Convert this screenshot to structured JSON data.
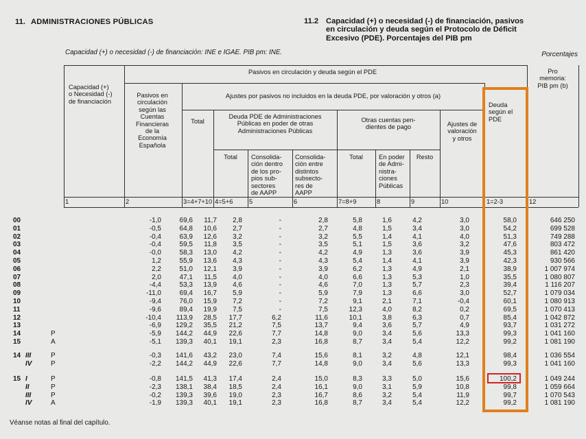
{
  "page": {
    "section_number": "11.",
    "section_title": "ADMINISTRACIONES PÚBLICAS",
    "table_number": "11.2",
    "table_title": "Capacidad (+) o necesidad (-) de financiación, pasivos\nen circulación y deuda según el Protocolo de Déficit\nExcesivo (PDE). Porcentajes del PIB pm",
    "source_note": "Capacidad (+) o necesidad (-) de financiación: INE e IGAE. PIB pm: INE.",
    "units_label": "Porcentajes",
    "footer_note": "Véanse notas al final del capítulo."
  },
  "header": {
    "group_pasivos": "Pasivos en circulación y deuda según el PDE",
    "capacidad": "Capacidad (+)\no Necesidad (-)\nde financiación",
    "pasivos_cuentas": "Pasivos en\ncirculación\nsegún las\nCuentas\nFinancieras\nde la\nEconomía\nEspañola",
    "group_ajustes": "Ajustes por pasivos no incluidos en la deuda PDE, por valoración y otros (a)",
    "total3": "Total",
    "group_deuda_aapp": "Deuda PDE de Administraciones\nPúblicas en poder de otras\nAdministraciones Públicas",
    "total4": "Total",
    "consolidacion_dentro": "Consolida-\nción dentro\nde los pro-\npios sub-\nsectores\nde AAPP",
    "consolidacion_entre": "Consolida-\nción entre\ndistintos\nsubsecto-\nres de\nAAPP",
    "group_otras_cuentas": "Otras cuentas pen-\ndientes de pago",
    "total7": "Total",
    "en_poder": "En poder\nde Admi-\nnistra-\nciones\nPúblicas",
    "resto": "Resto",
    "ajustes_valoracion": "Ajustes de\nvaloración\ny otros",
    "deuda_pde": "Deuda\nsegún el\nPDE",
    "pro_memoria": "Pro\nmemoria:\nPIB pm (b)",
    "column_numbers": [
      "1",
      "2",
      "3=4+7+10",
      "4=5+6",
      "5",
      "6",
      "7=8+9",
      "8",
      "9",
      "10",
      "1=2-3",
      "12"
    ]
  },
  "colors": {
    "highlight_box": "#e0801e",
    "alert_box": "#d42222"
  },
  "rows_annual": [
    {
      "year": "00",
      "quarter": "",
      "status": "",
      "values": [
        "-1,0",
        "69,6",
        "11,7",
        "2,8",
        "-",
        "2,8",
        "5,8",
        "1,6",
        "4,2",
        "3,0",
        "58,0",
        "646 250"
      ]
    },
    {
      "year": "01",
      "quarter": "",
      "status": "",
      "values": [
        "-0,5",
        "64,8",
        "10,6",
        "2,7",
        "-",
        "2,7",
        "4,8",
        "1,5",
        "3,4",
        "3,0",
        "54,2",
        "699 528"
      ]
    },
    {
      "year": "02",
      "quarter": "",
      "status": "",
      "values": [
        "-0,4",
        "63,9",
        "12,6",
        "3,2",
        "-",
        "3,2",
        "5,5",
        "1,4",
        "4,1",
        "4,0",
        "51,3",
        "749 288"
      ]
    },
    {
      "year": "03",
      "quarter": "",
      "status": "",
      "values": [
        "-0,4",
        "59,5",
        "11,8",
        "3,5",
        "-",
        "3,5",
        "5,1",
        "1,5",
        "3,6",
        "3,2",
        "47,6",
        "803 472"
      ]
    },
    {
      "year": "04",
      "quarter": "",
      "status": "",
      "values": [
        "-0,0",
        "58,3",
        "13,0",
        "4,2",
        "-",
        "4,2",
        "4,9",
        "1,3",
        "3,6",
        "3,9",
        "45,3",
        "861 420"
      ]
    },
    {
      "year": "05",
      "quarter": "",
      "status": "",
      "values": [
        "1,2",
        "55,9",
        "13,6",
        "4,3",
        "-",
        "4,3",
        "5,4",
        "1,4",
        "4,1",
        "3,9",
        "42,3",
        "930 566"
      ]
    },
    {
      "year": "06",
      "quarter": "",
      "status": "",
      "values": [
        "2,2",
        "51,0",
        "12,1",
        "3,9",
        "-",
        "3,9",
        "6,2",
        "1,3",
        "4,9",
        "2,1",
        "38,9",
        "1 007 974"
      ]
    },
    {
      "year": "07",
      "quarter": "",
      "status": "",
      "values": [
        "2,0",
        "47,1",
        "11,5",
        "4,0",
        "-",
        "4,0",
        "6,6",
        "1,3",
        "5,3",
        "1,0",
        "35,5",
        "1 080 807"
      ]
    },
    {
      "year": "08",
      "quarter": "",
      "status": "",
      "values": [
        "-4,4",
        "53,3",
        "13,9",
        "4,6",
        "-",
        "4,6",
        "7,0",
        "1,3",
        "5,7",
        "2,3",
        "39,4",
        "1 116 207"
      ]
    },
    {
      "year": "09",
      "quarter": "",
      "status": "",
      "values": [
        "-11,0",
        "69,4",
        "16,7",
        "5,9",
        "-",
        "5,9",
        "7,9",
        "1,3",
        "6,6",
        "3,0",
        "52,7",
        "1 079 034"
      ]
    },
    {
      "year": "10",
      "quarter": "",
      "status": "",
      "values": [
        "-9,4",
        "76,0",
        "15,9",
        "7,2",
        "-",
        "7,2",
        "9,1",
        "2,1",
        "7,1",
        "-0,4",
        "60,1",
        "1 080 913"
      ]
    },
    {
      "year": "11",
      "quarter": "",
      "status": "",
      "values": [
        "-9,6",
        "89,4",
        "19,9",
        "7,5",
        "-",
        "7,5",
        "12,3",
        "4,0",
        "8,2",
        "0,2",
        "69,5",
        "1 070 413"
      ]
    },
    {
      "year": "12",
      "quarter": "",
      "status": "",
      "values": [
        "-10,4",
        "113,9",
        "28,5",
        "17,7",
        "6,2",
        "11,6",
        "10,1",
        "3,8",
        "6,3",
        "0,7",
        "85,4",
        "1 042 872"
      ]
    },
    {
      "year": "13",
      "quarter": "",
      "status": "",
      "values": [
        "-6,9",
        "129,2",
        "35,5",
        "21,2",
        "7,5",
        "13,7",
        "9,4",
        "3,6",
        "5,7",
        "4,9",
        "93,7",
        "1 031 272"
      ]
    },
    {
      "year": "14",
      "quarter": "",
      "status": "P",
      "values": [
        "-5,9",
        "144,2",
        "44,9",
        "22,6",
        "7,7",
        "14,8",
        "9,0",
        "3,4",
        "5,6",
        "13,3",
        "99,3",
        "1 041 160"
      ]
    },
    {
      "year": "15",
      "quarter": "",
      "status": "A",
      "values": [
        "-5,1",
        "139,3",
        "40,1",
        "19,1",
        "2,3",
        "16,8",
        "8,7",
        "3,4",
        "5,4",
        "12,2",
        "99,2",
        "1 081 190"
      ]
    }
  ],
  "rows_q14": [
    {
      "year": "14",
      "quarter": "III",
      "status": "P",
      "values": [
        "-0,3",
        "141,6",
        "43,2",
        "23,0",
        "7,4",
        "15,6",
        "8,1",
        "3,2",
        "4,8",
        "12,1",
        "98,4",
        "1 036 554"
      ]
    },
    {
      "year": "",
      "quarter": "IV",
      "status": "P",
      "values": [
        "-2,2",
        "144,2",
        "44,9",
        "22,6",
        "7,7",
        "14,8",
        "9,0",
        "3,4",
        "5,6",
        "13,3",
        "99,3",
        "1 041 160"
      ]
    }
  ],
  "rows_q15": [
    {
      "year": "15",
      "quarter": "I",
      "status": "P",
      "red_box": true,
      "values": [
        "-0,8",
        "141,5",
        "41,3",
        "17,4",
        "2,4",
        "15,0",
        "8,3",
        "3,3",
        "5,0",
        "15,6",
        "100,2",
        "1 049 244"
      ]
    },
    {
      "year": "",
      "quarter": "II",
      "status": "P",
      "values": [
        "-2,3",
        "138,1",
        "38,4",
        "18,5",
        "2,4",
        "16,1",
        "9,0",
        "3,1",
        "5,9",
        "10,8",
        "99,8",
        "1 059 664"
      ]
    },
    {
      "year": "",
      "quarter": "III",
      "status": "P",
      "values": [
        "-0,2",
        "139,3",
        "39,6",
        "19,0",
        "2,3",
        "16,7",
        "8,6",
        "3,2",
        "5,4",
        "11,9",
        "99,7",
        "1 070 543"
      ]
    },
    {
      "year": "",
      "quarter": "IV",
      "status": "A",
      "values": [
        "-1,9",
        "139,3",
        "40,1",
        "19,1",
        "2,3",
        "16,8",
        "8,7",
        "3,4",
        "5,4",
        "12,2",
        "99,2",
        "1 081 190"
      ]
    }
  ]
}
